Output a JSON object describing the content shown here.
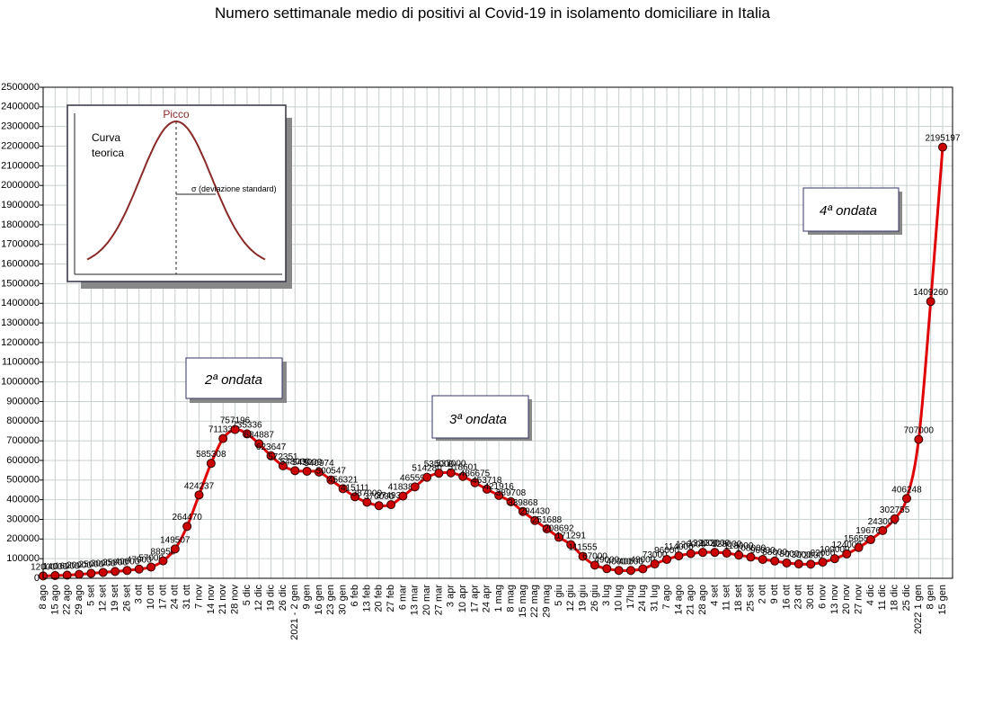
{
  "chart_data": {
    "type": "line",
    "title": "Numero settimanale medio di positivi al Covid-19  in isolamento domiciliare in Italia",
    "categories": [
      "8 ago",
      "15 ago",
      "22 ago",
      "29 ago",
      "5 set",
      "12 set",
      "19 set",
      "26 set",
      "3 ott",
      "10 ott",
      "17 ott",
      "24 ott",
      "31 ott",
      "7 nov",
      "14 nov",
      "21 nov",
      "28 nov",
      "5 dic",
      "12 dic",
      "19 dic",
      "26 dic",
      "2021 - 2 gen",
      "9 gen",
      "16 gen",
      "23 gen",
      "30 gen",
      "6 feb",
      "13 feb",
      "20 feb",
      "27 feb",
      "6 mar",
      "13 mar",
      "20 mar",
      "27 mar",
      "3 apr",
      "10 apr",
      "17 apr",
      "24 apr",
      "1 mag",
      "8 mag",
      "15 mag",
      "22 mag",
      "29 mag",
      "5 giu",
      "12 giu",
      "19 giu",
      "26 giu",
      "3 lug",
      "10 lug",
      "17lug",
      "24 lug",
      "31 lug",
      "7 ago",
      "14 ago",
      "21 ago",
      "28 ago",
      "4 set",
      "11 set",
      "18 set",
      "25 set",
      "2 ott",
      "9 ott",
      "16 ott",
      "23 ott",
      "30 ott",
      "6 nov",
      "13 nov",
      "20 nov",
      "27 nov",
      "4 dic",
      "11 dic",
      "18 dic",
      "25 dic",
      "2022 1 gen",
      "8 gen",
      "15 gen"
    ],
    "series": [
      {
        "name": "Positivi in isolamento domiciliare",
        "color": "#e00000",
        "marker_color": "#cc0000",
        "values": [
          12000,
          14000,
          16000,
          20000,
          25000,
          30000,
          35000,
          40000,
          47000,
          57000,
          88950,
          149507,
          264470,
          424237,
          585308,
          711337,
          757196,
          735336,
          684887,
          623647,
          572351,
          548000,
          545000,
          540974,
          500547,
          456321,
          415111,
          387000,
          370000,
          374930,
          418380,
          465590,
          514280,
          535000,
          537000,
          518601,
          486675,
          453718,
          421916,
          389708,
          339868,
          294430,
          251688,
          208692,
          171291,
          111555,
          67000,
          49000,
          40000,
          40000,
          48000,
          73000,
          96000,
          114000,
          126000,
          132000,
          132000,
          128000,
          118000,
          108000,
          96000,
          88000,
          78000,
          73000,
          72000,
          82000,
          100000,
          124000,
          156550,
          196760,
          243000,
          302755,
          406248,
          707000,
          1409260,
          2195197
        ]
      }
    ],
    "ylim": [
      0,
      2500000
    ],
    "yticks": [
      0,
      100000,
      200000,
      300000,
      400000,
      500000,
      600000,
      700000,
      800000,
      900000,
      1000000,
      1100000,
      1200000,
      1300000,
      1400000,
      1500000,
      1600000,
      1700000,
      1800000,
      1900000,
      2000000,
      2100000,
      2200000,
      2300000,
      2400000,
      2500000
    ],
    "grid": true,
    "annotations": [
      "2ª ondata",
      "3ª ondata",
      "4ª ondata"
    ],
    "inset": {
      "peak": "Picco",
      "curve": [
        "Curva",
        "teorica"
      ],
      "sigma": "σ  (deviazione standard)"
    }
  }
}
